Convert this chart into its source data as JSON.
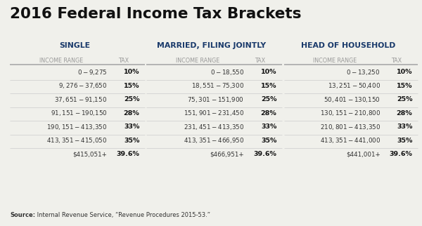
{
  "title": "2016 Federal Income Tax Brackets",
  "background_color": "#f0f0eb",
  "title_color": "#111111",
  "header_color": "#1a3a6b",
  "subheader_color": "#999999",
  "text_color": "#333333",
  "bold_color": "#111111",
  "line_color": "#aaaaaa",
  "row_line_color": "#cccccc",
  "sections": [
    {
      "header": "SINGLE",
      "rows": [
        [
          "$0 -    $9,275",
          "10%"
        ],
        [
          "$9,276 -  $37,650",
          "15%"
        ],
        [
          "$37,651 -  $91,150",
          "25%"
        ],
        [
          "$91,151 - $190,150",
          "28%"
        ],
        [
          "$190,151 - $413,350",
          "33%"
        ],
        [
          "$413,351 - $415,050",
          "35%"
        ],
        [
          "$415,051+",
          "39.6%"
        ]
      ]
    },
    {
      "header": "MARRIED, FILING JOINTLY",
      "rows": [
        [
          "$0 -  $18,550",
          "10%"
        ],
        [
          "$18,551 -  $75,300",
          "15%"
        ],
        [
          "$75,301 - $151,900",
          "25%"
        ],
        [
          "$151,901 - $231,450",
          "28%"
        ],
        [
          "$231,451 - $413,350",
          "33%"
        ],
        [
          "$413,351 - $466,950",
          "35%"
        ],
        [
          "$466,951+",
          "39.6%"
        ]
      ]
    },
    {
      "header": "HEAD OF HOUSEHOLD",
      "rows": [
        [
          "$0 -  $13,250",
          "10%"
        ],
        [
          "$13,251 -  $50,400",
          "15%"
        ],
        [
          "$50,401 - $130,150",
          "25%"
        ],
        [
          "$130,151 - $210,800",
          "28%"
        ],
        [
          "$210,801 - $413,350",
          "33%"
        ],
        [
          "$413,351 - $441,000",
          "35%"
        ],
        [
          "$441,001+",
          "39.6%"
        ]
      ]
    }
  ],
  "col1_label": "INCOME RANGE",
  "col2_label": "TAX",
  "source_bold": "Source:",
  "source_normal": " Internal Revenue Service, “Revenue Procedures 2015-53.”"
}
